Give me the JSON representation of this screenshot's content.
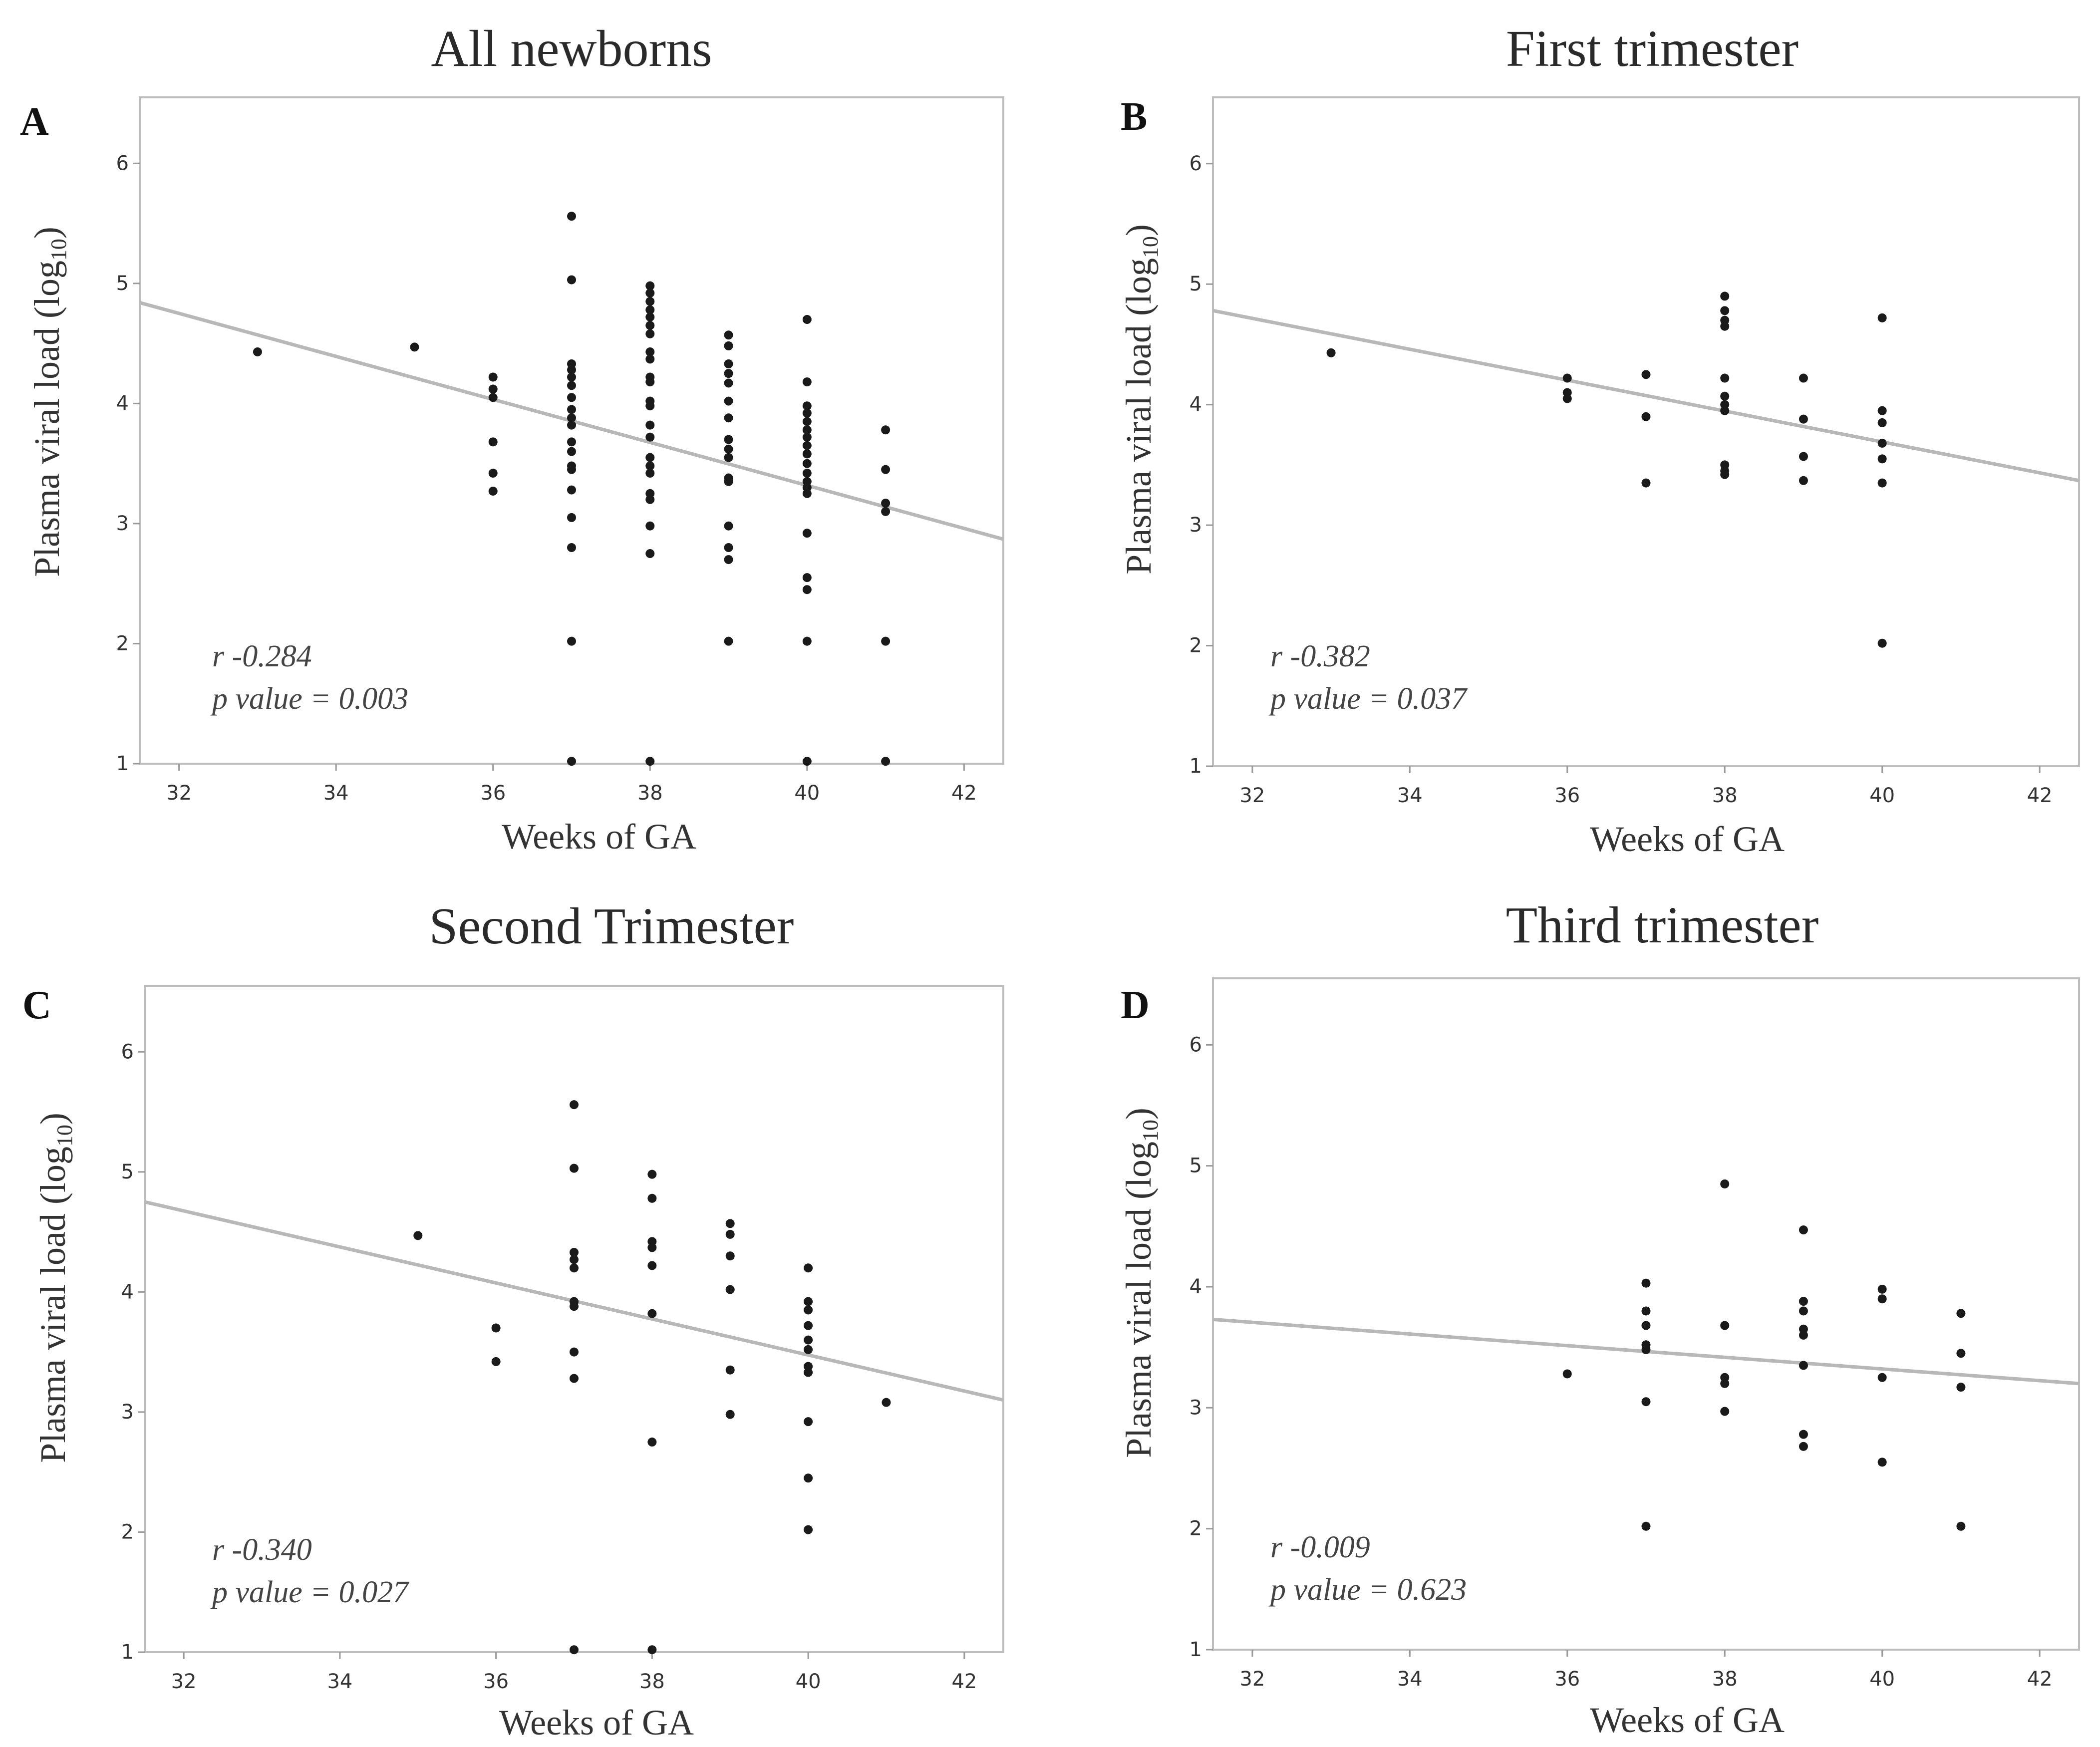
{
  "chart_data": [
    {
      "type": "scatter",
      "panel": "A",
      "title": "All newborns",
      "xlabel": "Weeks of GA",
      "ylabel": "Plasma viral load (log",
      "ylabel_sub": "10",
      "ylabel_close": ")",
      "xlim": [
        31.5,
        42.5
      ],
      "ylim": [
        1,
        6.55
      ],
      "xticks": [
        32,
        34,
        36,
        38,
        40,
        42
      ],
      "yticks": [
        1,
        2,
        3,
        4,
        5,
        6
      ],
      "stat_r": "r -0.284",
      "stat_p": "p value = 0.003",
      "regression": {
        "x1": 31.5,
        "y1": 4.84,
        "x2": 42.5,
        "y2": 2.87
      },
      "points": [
        [
          33,
          4.43
        ],
        [
          35,
          4.47
        ],
        [
          36,
          4.22
        ],
        [
          36,
          4.12
        ],
        [
          36,
          4.05
        ],
        [
          36,
          3.68
        ],
        [
          36,
          3.42
        ],
        [
          36,
          3.27
        ],
        [
          37,
          5.56
        ],
        [
          37,
          5.03
        ],
        [
          37,
          4.33
        ],
        [
          37,
          4.28
        ],
        [
          37,
          4.22
        ],
        [
          37,
          4.15
        ],
        [
          37,
          4.05
        ],
        [
          37,
          3.95
        ],
        [
          37,
          3.88
        ],
        [
          37,
          3.82
        ],
        [
          37,
          3.68
        ],
        [
          37,
          3.6
        ],
        [
          37,
          3.48
        ],
        [
          37,
          3.45
        ],
        [
          37,
          3.28
        ],
        [
          37,
          3.05
        ],
        [
          37,
          2.8
        ],
        [
          37,
          2.02
        ],
        [
          37,
          1.02
        ],
        [
          38,
          4.98
        ],
        [
          38,
          4.92
        ],
        [
          38,
          4.85
        ],
        [
          38,
          4.78
        ],
        [
          38,
          4.72
        ],
        [
          38,
          4.65
        ],
        [
          38,
          4.58
        ],
        [
          38,
          4.43
        ],
        [
          38,
          4.37
        ],
        [
          38,
          4.22
        ],
        [
          38,
          4.18
        ],
        [
          38,
          4.02
        ],
        [
          38,
          3.98
        ],
        [
          38,
          3.82
        ],
        [
          38,
          3.72
        ],
        [
          38,
          3.55
        ],
        [
          38,
          3.48
        ],
        [
          38,
          3.42
        ],
        [
          38,
          3.25
        ],
        [
          38,
          3.2
        ],
        [
          38,
          2.98
        ],
        [
          38,
          2.75
        ],
        [
          38,
          1.02
        ],
        [
          39,
          4.57
        ],
        [
          39,
          4.48
        ],
        [
          39,
          4.33
        ],
        [
          39,
          4.25
        ],
        [
          39,
          4.17
        ],
        [
          39,
          4.02
        ],
        [
          39,
          3.88
        ],
        [
          39,
          3.7
        ],
        [
          39,
          3.62
        ],
        [
          39,
          3.55
        ],
        [
          39,
          3.38
        ],
        [
          39,
          3.35
        ],
        [
          39,
          2.98
        ],
        [
          39,
          2.8
        ],
        [
          39,
          2.7
        ],
        [
          39,
          2.02
        ],
        [
          40,
          4.7
        ],
        [
          40,
          4.18
        ],
        [
          40,
          3.98
        ],
        [
          40,
          3.92
        ],
        [
          40,
          3.85
        ],
        [
          40,
          3.78
        ],
        [
          40,
          3.72
        ],
        [
          40,
          3.65
        ],
        [
          40,
          3.58
        ],
        [
          40,
          3.5
        ],
        [
          40,
          3.42
        ],
        [
          40,
          3.35
        ],
        [
          40,
          3.3
        ],
        [
          40,
          3.25
        ],
        [
          40,
          2.92
        ],
        [
          40,
          2.55
        ],
        [
          40,
          2.45
        ],
        [
          40,
          2.02
        ],
        [
          40,
          1.02
        ],
        [
          41,
          3.78
        ],
        [
          41,
          3.45
        ],
        [
          41,
          3.17
        ],
        [
          41,
          3.1
        ],
        [
          41,
          2.02
        ],
        [
          41,
          1.02
        ]
      ]
    },
    {
      "type": "scatter",
      "panel": "B",
      "title": "First trimester",
      "xlabel": "Weeks of GA",
      "ylabel": "Plasma viral load (log",
      "ylabel_sub": "10",
      "ylabel_close": ")",
      "xlim": [
        31.5,
        42.5
      ],
      "ylim": [
        1,
        6.55
      ],
      "xticks": [
        32,
        34,
        36,
        38,
        40,
        42
      ],
      "yticks": [
        1,
        2,
        3,
        4,
        5,
        6
      ],
      "stat_r": "r -0.382",
      "stat_p": "p value = 0.037",
      "regression": {
        "x1": 31.5,
        "y1": 4.78,
        "x2": 42.5,
        "y2": 3.37
      },
      "points": [
        [
          33,
          4.43
        ],
        [
          36,
          4.22
        ],
        [
          36,
          4.1
        ],
        [
          36,
          4.05
        ],
        [
          37,
          4.25
        ],
        [
          37,
          3.9
        ],
        [
          37,
          3.35
        ],
        [
          38,
          4.9
        ],
        [
          38,
          4.78
        ],
        [
          38,
          4.7
        ],
        [
          38,
          4.65
        ],
        [
          38,
          4.22
        ],
        [
          38,
          4.07
        ],
        [
          38,
          4.0
        ],
        [
          38,
          3.95
        ],
        [
          38,
          3.5
        ],
        [
          38,
          3.45
        ],
        [
          38,
          3.42
        ],
        [
          39,
          4.22
        ],
        [
          39,
          3.88
        ],
        [
          39,
          3.57
        ],
        [
          39,
          3.37
        ],
        [
          40,
          4.72
        ],
        [
          40,
          3.95
        ],
        [
          40,
          3.85
        ],
        [
          40,
          3.68
        ],
        [
          40,
          3.55
        ],
        [
          40,
          3.35
        ],
        [
          40,
          2.02
        ]
      ]
    },
    {
      "type": "scatter",
      "panel": "C",
      "title": "Second Trimester",
      "xlabel": "Weeks of GA",
      "ylabel": "Plasma viral load (log",
      "ylabel_sub": "10",
      "ylabel_close": ")",
      "xlim": [
        31.5,
        42.5
      ],
      "ylim": [
        1,
        6.55
      ],
      "xticks": [
        32,
        34,
        36,
        38,
        40,
        42
      ],
      "yticks": [
        1,
        2,
        3,
        4,
        5,
        6
      ],
      "stat_r": "r -0.340",
      "stat_p": "p value = 0.027",
      "regression": {
        "x1": 31.5,
        "y1": 4.75,
        "x2": 42.5,
        "y2": 3.1
      },
      "points": [
        [
          35,
          4.47
        ],
        [
          36,
          3.7
        ],
        [
          36,
          3.42
        ],
        [
          37,
          5.56
        ],
        [
          37,
          5.03
        ],
        [
          37,
          4.33
        ],
        [
          37,
          4.27
        ],
        [
          37,
          4.2
        ],
        [
          37,
          3.92
        ],
        [
          37,
          3.88
        ],
        [
          37,
          3.5
        ],
        [
          37,
          3.28
        ],
        [
          37,
          1.02
        ],
        [
          38,
          4.98
        ],
        [
          38,
          4.78
        ],
        [
          38,
          4.42
        ],
        [
          38,
          4.37
        ],
        [
          38,
          4.22
        ],
        [
          38,
          3.82
        ],
        [
          38,
          2.75
        ],
        [
          38,
          1.02
        ],
        [
          39,
          4.57
        ],
        [
          39,
          4.48
        ],
        [
          39,
          4.3
        ],
        [
          39,
          4.02
        ],
        [
          39,
          3.35
        ],
        [
          39,
          2.98
        ],
        [
          40,
          4.2
        ],
        [
          40,
          3.92
        ],
        [
          40,
          3.85
        ],
        [
          40,
          3.72
        ],
        [
          40,
          3.6
        ],
        [
          40,
          3.52
        ],
        [
          40,
          3.38
        ],
        [
          40,
          3.33
        ],
        [
          40,
          2.92
        ],
        [
          40,
          2.45
        ],
        [
          40,
          2.02
        ],
        [
          41,
          3.08
        ]
      ]
    },
    {
      "type": "scatter",
      "panel": "D",
      "title": "Third trimester",
      "xlabel": "Weeks of GA",
      "ylabel": "Plasma viral load (log",
      "ylabel_sub": "10",
      "ylabel_close": ")",
      "xlim": [
        31.5,
        42.5
      ],
      "ylim": [
        1,
        6.55
      ],
      "xticks": [
        32,
        34,
        36,
        38,
        40,
        42
      ],
      "yticks": [
        1,
        2,
        3,
        4,
        5,
        6
      ],
      "stat_r": "r -0.009",
      "stat_p": "p value = 0.623",
      "regression": {
        "x1": 31.5,
        "y1": 3.73,
        "x2": 42.5,
        "y2": 3.2
      },
      "points": [
        [
          36,
          3.28
        ],
        [
          37,
          4.03
        ],
        [
          37,
          3.8
        ],
        [
          37,
          3.68
        ],
        [
          37,
          3.52
        ],
        [
          37,
          3.48
        ],
        [
          37,
          3.05
        ],
        [
          37,
          2.02
        ],
        [
          38,
          4.85
        ],
        [
          38,
          3.68
        ],
        [
          38,
          3.25
        ],
        [
          38,
          3.2
        ],
        [
          38,
          2.97
        ],
        [
          39,
          4.47
        ],
        [
          39,
          3.88
        ],
        [
          39,
          3.8
        ],
        [
          39,
          3.65
        ],
        [
          39,
          3.6
        ],
        [
          39,
          3.35
        ],
        [
          39,
          2.78
        ],
        [
          39,
          2.68
        ],
        [
          40,
          3.98
        ],
        [
          40,
          3.9
        ],
        [
          40,
          3.25
        ],
        [
          40,
          2.55
        ],
        [
          41,
          3.78
        ],
        [
          41,
          3.45
        ],
        [
          41,
          3.17
        ],
        [
          41,
          2.02
        ]
      ]
    }
  ]
}
